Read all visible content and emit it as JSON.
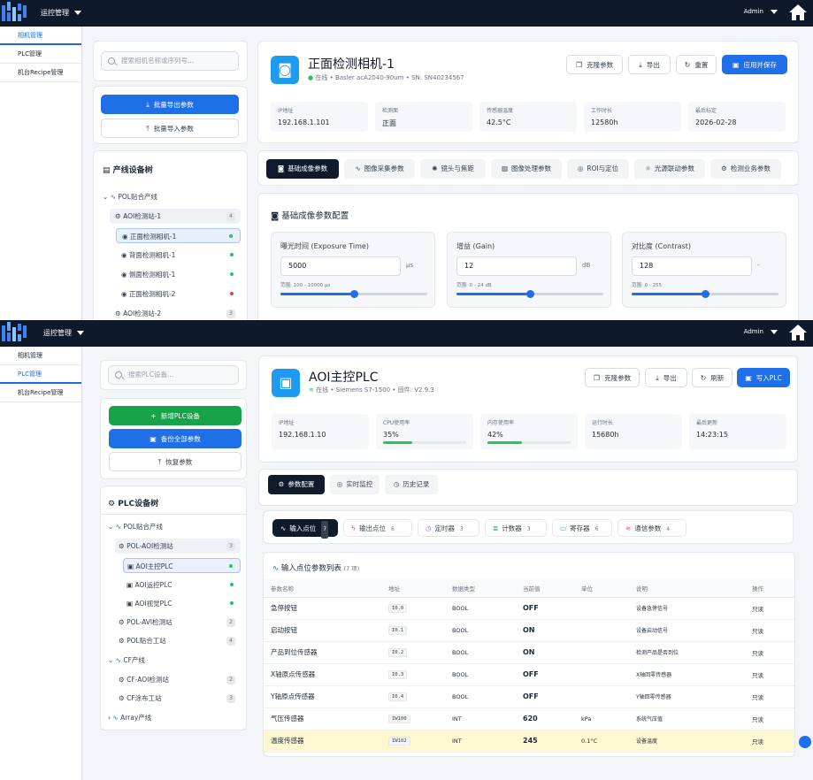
{
  "s1": {
    "topbar": {
      "menu": "运控管理",
      "user": "Admin"
    },
    "nav": [
      "相机管理",
      "PLC管理",
      "机台Recipe管理"
    ],
    "search_placeholder": "搜索相机名称或序列号...",
    "export_btn": "批量导出参数",
    "import_btn": "批量导入参数",
    "tree_title": "产线设备树",
    "tree": {
      "line": "POL贴合产线",
      "station1": "AOI检测站-1",
      "station1_count": "4",
      "cams": [
        "正面检测相机-1",
        "背面检测相机-1",
        "侧面检测相机-1",
        "正面检测相机-2"
      ],
      "station2": "AOI检测站-2",
      "station2_count": "3"
    },
    "header": {
      "title": "正面检测相机-1",
      "status": "在线",
      "model": "Basler acA2040-90um",
      "sn": "SN: SN40234567",
      "btn_clone": "克隆参数",
      "btn_export": "导出",
      "btn_reset": "重置",
      "btn_apply": "应用并保存"
    },
    "stats": [
      {
        "label": "IP地址",
        "value": "192.168.1.101"
      },
      {
        "label": "检测面",
        "value": "正面"
      },
      {
        "label": "传感器温度",
        "value": "42.5°C"
      },
      {
        "label": "工作时长",
        "value": "12580h"
      },
      {
        "label": "最后标定",
        "value": "2026-02-28"
      }
    ],
    "tabs": [
      "基础成像参数",
      "图像采集参数",
      "镜头与焦距",
      "图像处理参数",
      "ROI与定位",
      "光源联动参数",
      "检测业务参数"
    ],
    "section_title": "基础成像参数配置",
    "params": [
      {
        "label": "曝光时间 (Exposure Time)",
        "value": "5000",
        "unit": "μs",
        "range": "范围: 100 - 10000 μs",
        "level": 0.5
      },
      {
        "label": "增益 (Gain)",
        "value": "12",
        "unit": "dB",
        "range": "范围: 0 - 24 dB",
        "level": 0.5
      },
      {
        "label": "对比度 (Contrast)",
        "value": "128",
        "unit": "-",
        "range": "范围: 0 - 255",
        "level": 0.5
      }
    ]
  },
  "s2": {
    "topbar": {
      "menu": "运控管理",
      "user": "Admin"
    },
    "nav": [
      "相机管理",
      "PLC管理",
      "机台Recipe管理"
    ],
    "search_placeholder": "搜索PLC设备...",
    "btn_add": "新增PLC设备",
    "btn_backup": "备份全部参数",
    "btn_restore": "恢复参数",
    "tree_title": "PLC设备树",
    "tree": {
      "line1": "POL贴合产线",
      "st1": "POL-AOI检测站",
      "st1_count": "3",
      "plcs": [
        "AOI主控PLC",
        "AOI运控PLC",
        "AOI视觉PLC"
      ],
      "st2": "POL-AVI检测站",
      "st2_count": "2",
      "st3": "POL贴合工站",
      "st3_count": "4",
      "line2": "CF产线",
      "st4": "CF-AOI检测站",
      "st4_count": "2",
      "st5": "CF涂布工站",
      "st5_count": "3",
      "line3": "Array产线"
    },
    "header": {
      "title": "AOI主控PLC",
      "status": "在线",
      "model": "Siemens S7-1500",
      "fw": "固件: V2.9.3",
      "btn_clone": "克隆参数",
      "btn_export": "导出",
      "btn_refresh": "刷新",
      "btn_write": "写入PLC"
    },
    "stats": [
      {
        "label": "IP地址",
        "value": "192.168.1.10"
      },
      {
        "label": "CPU使用率",
        "value": "35%",
        "level": 0.35
      },
      {
        "label": "内存使用率",
        "value": "42%",
        "level": 0.42
      },
      {
        "label": "运行时长",
        "value": "15680h"
      },
      {
        "label": "最后更新",
        "value": "14:23:15"
      }
    ],
    "tabs": [
      "参数配置",
      "实时监控",
      "历史记录"
    ],
    "ptabs": [
      {
        "label": "输入点位",
        "count": "7"
      },
      {
        "label": "输出点位",
        "count": "6"
      },
      {
        "label": "定时器",
        "count": "3"
      },
      {
        "label": "计数器",
        "count": "3"
      },
      {
        "label": "寄存器",
        "count": "6"
      },
      {
        "label": "通信参数",
        "count": "4"
      }
    ],
    "list_title": "输入点位参数列表",
    "list_count": "(7 项)",
    "columns": [
      "参数名称",
      "地址",
      "数据类型",
      "当前值",
      "单位",
      "说明",
      "操作"
    ],
    "rows": [
      {
        "name": "急停按钮",
        "addr": "I0.0",
        "type": "BOOL",
        "value": "OFF",
        "unit": "",
        "desc": "设备急停信号",
        "op": "只读"
      },
      {
        "name": "启动按钮",
        "addr": "I0.1",
        "type": "BOOL",
        "value": "ON",
        "unit": "",
        "desc": "设备启动信号",
        "op": "只读"
      },
      {
        "name": "产品到位传感器",
        "addr": "I0.2",
        "type": "BOOL",
        "value": "ON",
        "unit": "",
        "desc": "检测产品是否到位",
        "op": "只读"
      },
      {
        "name": "X轴原点传感器",
        "addr": "I0.3",
        "type": "BOOL",
        "value": "OFF",
        "unit": "",
        "desc": "X轴回零传感器",
        "op": "只读"
      },
      {
        "name": "Y轴原点传感器",
        "addr": "I0.4",
        "type": "BOOL",
        "value": "OFF",
        "unit": "",
        "desc": "Y轴回零传感器",
        "op": "只读"
      },
      {
        "name": "气压传感器",
        "addr": "IW100",
        "type": "INT",
        "value": "620",
        "unit": "kPa",
        "desc": "系统气压值",
        "op": "只读"
      },
      {
        "name": "温度传感器",
        "addr": "IW102",
        "type": "INT",
        "value": "245",
        "unit": "0.1°C",
        "desc": "设备温度",
        "op": "只读"
      }
    ]
  },
  "colors": {
    "topbar": "#0e1a2b",
    "primary": "#1f6fe8",
    "green": "#16a34a",
    "dark_tab": "#0f1b2d",
    "online": "#22c55e",
    "offline": "#ef4444",
    "highlight": "#fdf7d2"
  }
}
